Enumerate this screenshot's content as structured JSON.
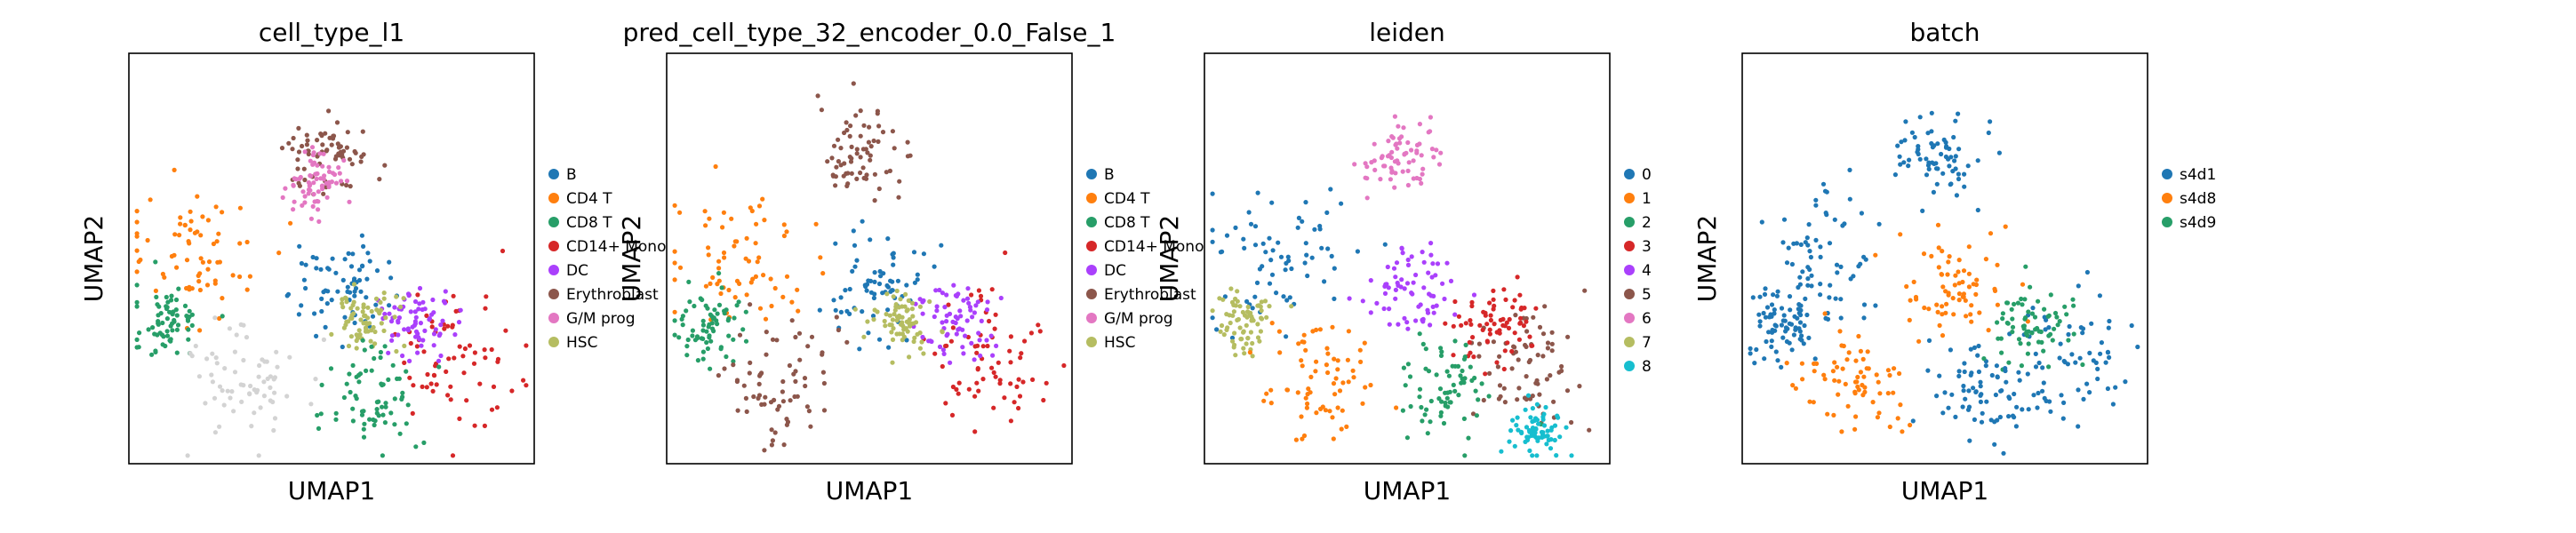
{
  "figure": {
    "title": ""
  },
  "chart_data": [
    {
      "type": "scatter",
      "title": "cell_type_l1",
      "xlabel": "UMAP1",
      "ylabel": "UMAP2",
      "legend_position": "right",
      "categories": [
        {
          "name": "B",
          "color": "#1f77b4"
        },
        {
          "name": "CD4 T",
          "color": "#ff7f0e"
        },
        {
          "name": "CD8 T",
          "color": "#279e68"
        },
        {
          "name": "CD14+ Mono",
          "color": "#d62728"
        },
        {
          "name": "DC",
          "color": "#aa40fc"
        },
        {
          "name": "Erythroblast",
          "color": "#8c564b"
        },
        {
          "name": "G/M prog",
          "color": "#e377c2"
        },
        {
          "name": "HSC",
          "color": "#b5bd61"
        }
      ],
      "unlisted_color": "#d3d3d3",
      "clusters": [
        {
          "x": 0.48,
          "y": 0.25,
          "s": 0.05,
          "cat": "Erythroblast"
        },
        {
          "x": 0.47,
          "y": 0.32,
          "s": 0.04,
          "cat": "G/M prog"
        },
        {
          "x": 0.18,
          "y": 0.5,
          "s": 0.09,
          "cat": "CD4 T"
        },
        {
          "x": 0.1,
          "y": 0.66,
          "s": 0.04,
          "cat": "CD8 T"
        },
        {
          "x": 0.52,
          "y": 0.57,
          "s": 0.06,
          "cat": "B"
        },
        {
          "x": 0.8,
          "y": 0.75,
          "s": 0.08,
          "cat": "CD14+ Mono"
        },
        {
          "x": 0.72,
          "y": 0.66,
          "s": 0.05,
          "cat": "DC"
        },
        {
          "x": 0.58,
          "y": 0.65,
          "s": 0.04,
          "cat": "HSC"
        },
        {
          "x": 0.6,
          "y": 0.82,
          "s": 0.06,
          "cat": "CD8 T"
        },
        {
          "x": 0.28,
          "y": 0.8,
          "s": 0.07,
          "cat": null
        }
      ]
    },
    {
      "type": "scatter",
      "title": "pred_cell_type_32_encoder_0.0_False_1",
      "xlabel": "UMAP1",
      "ylabel": "UMAP2",
      "legend_position": "right",
      "categories": [
        {
          "name": "B",
          "color": "#1f77b4"
        },
        {
          "name": "CD4 T",
          "color": "#ff7f0e"
        },
        {
          "name": "CD8 T",
          "color": "#279e68"
        },
        {
          "name": "CD14+ Mono",
          "color": "#d62728"
        },
        {
          "name": "DC",
          "color": "#aa40fc"
        },
        {
          "name": "Erythroblast",
          "color": "#8c564b"
        },
        {
          "name": "G/M prog",
          "color": "#e377c2"
        },
        {
          "name": "HSC",
          "color": "#b5bd61"
        }
      ],
      "clusters": [
        {
          "x": 0.48,
          "y": 0.25,
          "s": 0.05,
          "cat": "Erythroblast"
        },
        {
          "x": 0.18,
          "y": 0.5,
          "s": 0.09,
          "cat": "CD4 T"
        },
        {
          "x": 0.1,
          "y": 0.66,
          "s": 0.04,
          "cat": "CD8 T"
        },
        {
          "x": 0.52,
          "y": 0.57,
          "s": 0.06,
          "cat": "B"
        },
        {
          "x": 0.8,
          "y": 0.75,
          "s": 0.08,
          "cat": "CD14+ Mono"
        },
        {
          "x": 0.72,
          "y": 0.66,
          "s": 0.05,
          "cat": "DC"
        },
        {
          "x": 0.58,
          "y": 0.65,
          "s": 0.04,
          "cat": "HSC"
        },
        {
          "x": 0.28,
          "y": 0.8,
          "s": 0.07,
          "cat": "Erythroblast"
        }
      ]
    },
    {
      "type": "scatter",
      "title": "leiden",
      "xlabel": "UMAP1",
      "ylabel": "UMAP2",
      "legend_position": "right",
      "categories": [
        {
          "name": "0",
          "color": "#1f77b4"
        },
        {
          "name": "1",
          "color": "#ff7f0e"
        },
        {
          "name": "2",
          "color": "#279e68"
        },
        {
          "name": "3",
          "color": "#d62728"
        },
        {
          "name": "4",
          "color": "#aa40fc"
        },
        {
          "name": "5",
          "color": "#8c564b"
        },
        {
          "name": "6",
          "color": "#e377c2"
        },
        {
          "name": "7",
          "color": "#b5bd61"
        },
        {
          "name": "8",
          "color": "#17becf"
        }
      ],
      "clusters": [
        {
          "x": 0.48,
          "y": 0.25,
          "s": 0.05,
          "cat": "6"
        },
        {
          "x": 0.18,
          "y": 0.5,
          "s": 0.09,
          "cat": "0"
        },
        {
          "x": 0.1,
          "y": 0.66,
          "s": 0.04,
          "cat": "7"
        },
        {
          "x": 0.52,
          "y": 0.57,
          "s": 0.06,
          "cat": "4"
        },
        {
          "x": 0.8,
          "y": 0.75,
          "s": 0.08,
          "cat": "5"
        },
        {
          "x": 0.72,
          "y": 0.66,
          "s": 0.05,
          "cat": "3"
        },
        {
          "x": 0.6,
          "y": 0.82,
          "s": 0.06,
          "cat": "2"
        },
        {
          "x": 0.28,
          "y": 0.8,
          "s": 0.07,
          "cat": "1"
        },
        {
          "x": 0.82,
          "y": 0.92,
          "s": 0.03,
          "cat": "8"
        }
      ]
    },
    {
      "type": "scatter",
      "title": "batch",
      "xlabel": "UMAP1",
      "ylabel": "UMAP2",
      "legend_position": "right",
      "categories": [
        {
          "name": "s4d1",
          "color": "#1f77b4"
        },
        {
          "name": "s4d8",
          "color": "#ff7f0e"
        },
        {
          "name": "s4d9",
          "color": "#279e68"
        }
      ],
      "clusters": [
        {
          "x": 0.48,
          "y": 0.25,
          "s": 0.05,
          "cat": "s4d1"
        },
        {
          "x": 0.18,
          "y": 0.5,
          "s": 0.09,
          "cat": "s4d1"
        },
        {
          "x": 0.1,
          "y": 0.66,
          "s": 0.04,
          "cat": "s4d1"
        },
        {
          "x": 0.52,
          "y": 0.57,
          "s": 0.06,
          "cat": "s4d8"
        },
        {
          "x": 0.8,
          "y": 0.75,
          "s": 0.08,
          "cat": "s4d1"
        },
        {
          "x": 0.72,
          "y": 0.66,
          "s": 0.05,
          "cat": "s4d9"
        },
        {
          "x": 0.6,
          "y": 0.82,
          "s": 0.06,
          "cat": "s4d1"
        },
        {
          "x": 0.28,
          "y": 0.8,
          "s": 0.07,
          "cat": "s4d8"
        }
      ]
    }
  ]
}
